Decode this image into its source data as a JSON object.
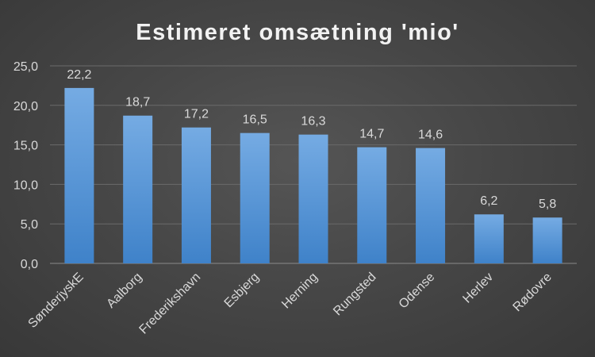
{
  "chart_data": {
    "type": "bar",
    "title": "Estimeret omsætning 'mio'",
    "xlabel": "",
    "ylabel": "",
    "categories": [
      "SønderjyskE",
      "Aalborg",
      "Frederikshavn",
      "Esbjerg",
      "Herning",
      "Rungsted",
      "Odense",
      "Herlev",
      "Rødovre"
    ],
    "values": [
      22.2,
      18.7,
      17.2,
      16.5,
      16.3,
      14.7,
      14.6,
      6.2,
      5.8
    ],
    "value_labels": [
      "22,2",
      "18,7",
      "17,2",
      "16,5",
      "16,3",
      "14,7",
      "14,6",
      "6,2",
      "5,8"
    ],
    "ylim": [
      0,
      25
    ],
    "yticks": [
      0,
      5,
      10,
      15,
      20,
      25
    ],
    "ytick_labels": [
      "0,0",
      "5,0",
      "10,0",
      "15,0",
      "20,0",
      "25,0"
    ],
    "grid": true,
    "legend": "none",
    "colors": {
      "bar_top": "#75abe3",
      "bar_bottom": "#3f82c9",
      "background": "#474747",
      "text": "#d9d9d9",
      "title": "#f2f2f2"
    }
  }
}
